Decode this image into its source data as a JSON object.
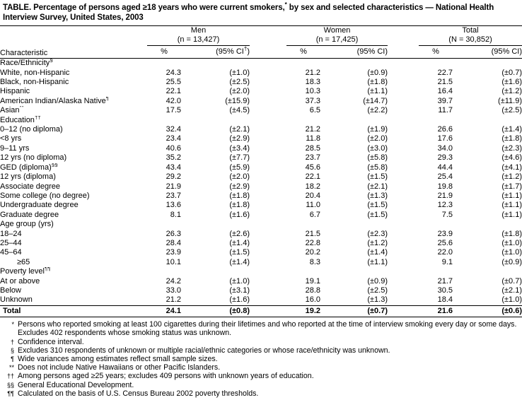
{
  "title": {
    "pre": "TABLE. Percentage of persons aged ≥18 years who were current smokers,",
    "sup": "*",
    "post": " by sex and selected characteristics — National Health Interview Survey, United States, 2003"
  },
  "header": {
    "characteristic": "Characteristic",
    "groups": [
      {
        "name": "Men",
        "n": "(n = 13,427)",
        "pct_label": "%",
        "ci_pre": "(95% CI",
        "ci_sup": "†",
        "ci_post": ")"
      },
      {
        "name": "Women",
        "n": "(n = 17,425)",
        "pct_label": "%",
        "ci_pre": "(95% CI",
        "ci_sup": "",
        "ci_post": ")"
      },
      {
        "name": "Total",
        "n": "(N = 30,852)",
        "pct_label": "%",
        "ci_pre": "(95% CI",
        "ci_sup": "",
        "ci_post": ")"
      }
    ]
  },
  "table": {
    "sections": [
      {
        "heading": "Race/Ethnicity",
        "sup": "§",
        "rows": [
          {
            "label": "White, non-Hispanic",
            "sup": "",
            "indent": 1,
            "men": [
              "24.3",
              "(±1.0)"
            ],
            "women": [
              "21.2",
              "(±0.9)"
            ],
            "total": [
              "22.7",
              "(±0.7)"
            ]
          },
          {
            "label": "Black, non-Hispanic",
            "sup": "",
            "indent": 1,
            "men": [
              "25.5",
              "(±2.5)"
            ],
            "women": [
              "18.3",
              "(±1.8)"
            ],
            "total": [
              "21.5",
              "(±1.6)"
            ]
          },
          {
            "label": "Hispanic",
            "sup": "",
            "indent": 1,
            "men": [
              "22.1",
              "(±2.0)"
            ],
            "women": [
              "10.3",
              "(±1.1)"
            ],
            "total": [
              "16.4",
              "(±1.2)"
            ]
          },
          {
            "label": "American Indian/Alaska Native",
            "sup": "¶",
            "indent": 1,
            "men": [
              "42.0",
              "(±15.9)"
            ],
            "women": [
              "37.3",
              "(±14.7)"
            ],
            "total": [
              "39.7",
              "(±11.9)"
            ]
          },
          {
            "label": "Asian",
            "sup": "**",
            "indent": 1,
            "men": [
              "17.5",
              "(±4.5)"
            ],
            "women": [
              "6.5",
              "(±2.2)"
            ],
            "total": [
              "11.7",
              "(±2.5)"
            ]
          }
        ]
      },
      {
        "heading": "Education",
        "sup": "††",
        "rows": [
          {
            "label": "0–12 (no diploma)",
            "sup": "",
            "indent": 1,
            "men": [
              "32.4",
              "(±2.1)"
            ],
            "women": [
              "21.2",
              "(±1.9)"
            ],
            "total": [
              "26.6",
              "(±1.4)"
            ]
          },
          {
            "label": "<8 yrs",
            "sup": "",
            "indent": 1,
            "men": [
              "23.4",
              "(±2.9)"
            ],
            "women": [
              "11.8",
              "(±2.0)"
            ],
            "total": [
              "17.6",
              "(±1.8)"
            ]
          },
          {
            "label": "9–11 yrs",
            "sup": "",
            "indent": 1,
            "men": [
              "40.6",
              "(±3.4)"
            ],
            "women": [
              "28.5",
              "(±3.0)"
            ],
            "total": [
              "34.0",
              "(±2.3)"
            ]
          },
          {
            "label": "12 yrs (no diploma)",
            "sup": "",
            "indent": 1,
            "men": [
              "35.2",
              "(±7.7)"
            ],
            "women": [
              "23.7",
              "(±5.8)"
            ],
            "total": [
              "29.3",
              "(±4.6)"
            ]
          },
          {
            "label": "GED (diploma)",
            "sup": "§§",
            "indent": 1,
            "men": [
              "43.4",
              "(±5.9)"
            ],
            "women": [
              "45.6",
              "(±5.8)"
            ],
            "total": [
              "44.4",
              "(±4.1)"
            ]
          },
          {
            "label": "12 yrs (diploma)",
            "sup": "",
            "indent": 1,
            "men": [
              "29.2",
              "(±2.0)"
            ],
            "women": [
              "22.1",
              "(±1.5)"
            ],
            "total": [
              "25.4",
              "(±1.2)"
            ]
          },
          {
            "label": "Associate degree",
            "sup": "",
            "indent": 1,
            "men": [
              "21.9",
              "(±2.9)"
            ],
            "women": [
              "18.2",
              "(±2.1)"
            ],
            "total": [
              "19.8",
              "(±1.7)"
            ]
          },
          {
            "label": "Some college (no degree)",
            "sup": "",
            "indent": 1,
            "men": [
              "23.7",
              "(±1.8)"
            ],
            "women": [
              "20.4",
              "(±1.3)"
            ],
            "total": [
              "21.9",
              "(±1.1)"
            ]
          },
          {
            "label": "Undergraduate degree",
            "sup": "",
            "indent": 1,
            "men": [
              "13.6",
              "(±1.8)"
            ],
            "women": [
              "11.0",
              "(±1.5)"
            ],
            "total": [
              "12.3",
              "(±1.1)"
            ]
          },
          {
            "label": "Graduate degree",
            "sup": "",
            "indent": 1,
            "men": [
              "8.1",
              "(±1.6)"
            ],
            "women": [
              "6.7",
              "(±1.5)"
            ],
            "total": [
              "7.5",
              "(±1.1)"
            ]
          }
        ]
      },
      {
        "heading": "Age group (yrs)",
        "sup": "",
        "rows": [
          {
            "label": "18–24",
            "sup": "",
            "indent": 1,
            "men": [
              "26.3",
              "(±2.6)"
            ],
            "women": [
              "21.5",
              "(±2.3)"
            ],
            "total": [
              "23.9",
              "(±1.8)"
            ]
          },
          {
            "label": "25–44",
            "sup": "",
            "indent": 1,
            "men": [
              "28.4",
              "(±1.4)"
            ],
            "women": [
              "22.8",
              "(±1.2)"
            ],
            "total": [
              "25.6",
              "(±1.0)"
            ]
          },
          {
            "label": "45–64",
            "sup": "",
            "indent": 1,
            "men": [
              "23.9",
              "(±1.5)"
            ],
            "women": [
              "20.2",
              "(±1.4)"
            ],
            "total": [
              "22.0",
              "(±1.0)"
            ]
          },
          {
            "label": "≥65",
            "sup": "",
            "indent": 2,
            "men": [
              "10.1",
              "(±1.4)"
            ],
            "women": [
              "8.3",
              "(±1.1)"
            ],
            "total": [
              "9.1",
              "(±0.9)"
            ]
          }
        ]
      },
      {
        "heading": "Poverty level",
        "sup": "¶¶",
        "rows": [
          {
            "label": "At or above",
            "sup": "",
            "indent": 1,
            "men": [
              "24.2",
              "(±1.0)"
            ],
            "women": [
              "19.1",
              "(±0.9)"
            ],
            "total": [
              "21.7",
              "(±0.7)"
            ]
          },
          {
            "label": "Below",
            "sup": "",
            "indent": 1,
            "men": [
              "33.0",
              "(±3.1)"
            ],
            "women": [
              "28.8",
              "(±2.5)"
            ],
            "total": [
              "30.5",
              "(±2.1)"
            ]
          },
          {
            "label": "Unknown",
            "sup": "",
            "indent": 1,
            "men": [
              "21.2",
              "(±1.6)"
            ],
            "women": [
              "16.0",
              "(±1.3)"
            ],
            "total": [
              "18.4",
              "(±1.0)"
            ]
          }
        ]
      }
    ],
    "total_row": {
      "label": "Total",
      "men": [
        "24.1",
        "(±0.8)"
      ],
      "women": [
        "19.2",
        "(±0.7)"
      ],
      "total": [
        "21.6",
        "(±0.6)"
      ]
    }
  },
  "footnotes": [
    {
      "marker": "*",
      "text": "Persons who reported smoking at least 100 cigarettes during their lifetimes and who reported at the time of interview smoking every day or some days. Excludes 402 respondents whose smoking status was unknown."
    },
    {
      "marker": "†",
      "text": "Confidence interval."
    },
    {
      "marker": "§",
      "text": "Excludes 310 respondents of unknown or multiple racial/ethnic categories or whose race/ethnicity was unknown."
    },
    {
      "marker": "¶",
      "text": "Wide variances among estimates reflect small sample sizes."
    },
    {
      "marker": "**",
      "text": "Does not include Native Hawaiians or other Pacific Islanders."
    },
    {
      "marker": "††",
      "text": "Among persons aged ≥25 years; excludes 409 persons with unknown years of education."
    },
    {
      "marker": "§§",
      "text": "General Educational Development."
    },
    {
      "marker": "¶¶",
      "text": "Calculated on the basis of U.S. Census Bureau 2002 poverty thresholds."
    }
  ]
}
